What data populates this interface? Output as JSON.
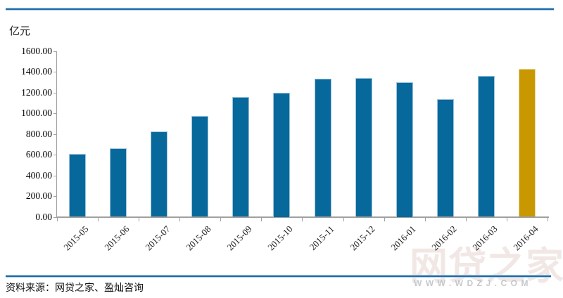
{
  "footer": {
    "source": "资料来源：网贷之家、盈灿咨询"
  },
  "watermark": {
    "logo": "网贷之家",
    "url": "WWW.WDZJ.COM"
  },
  "colors": {
    "bar": "#07689B",
    "bar_border": "#9DC4DD",
    "highlight": "#C99700",
    "highlight_border": "#E3D79F",
    "axis": "#A0A0A0",
    "rule": "#1E6CA8",
    "rule_glow": "#AECDE4"
  },
  "chart_data": {
    "type": "bar",
    "title": "",
    "xlabel": "",
    "ylabel": "亿元",
    "categories": [
      "2015-05",
      "2015-06",
      "2015-07",
      "2015-08",
      "2015-09",
      "2015-10",
      "2015-11",
      "2015-12",
      "2016-01",
      "2016-02",
      "2016-03",
      "2016-04"
    ],
    "values": [
      610,
      660,
      825,
      975,
      1155,
      1200,
      1335,
      1345,
      1300,
      1135,
      1365,
      1430
    ],
    "highlight_index": 11,
    "ylim": [
      0,
      1600
    ],
    "ytick_step": 200,
    "ytick_format": "0.00",
    "grid": false,
    "legend": false,
    "x_label_rotation": -45
  }
}
